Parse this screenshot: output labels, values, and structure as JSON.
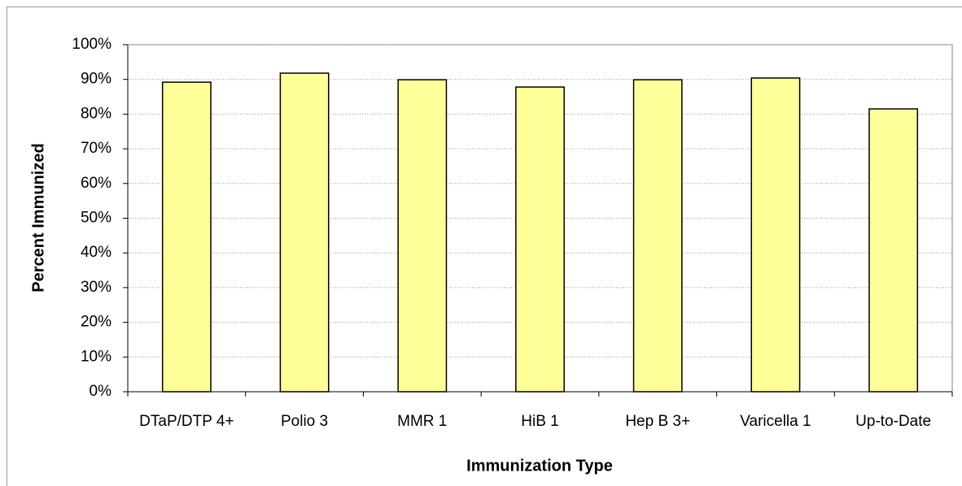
{
  "chart_data": {
    "type": "bar",
    "x_label": "Immunization Type",
    "y_label": "Percent Immunized",
    "categories": [
      "DTaP/DTP 4+",
      "Polio 3",
      "MMR 1",
      "HiB 1",
      "Hep B 3+",
      "Varicella 1",
      "Up-to-Date"
    ],
    "values": [
      89.2,
      91.8,
      89.9,
      87.8,
      89.9,
      90.4,
      81.5
    ],
    "color": "#ffff99",
    "ylim": [
      0,
      100
    ],
    "yticks": [
      {
        "value": 0,
        "label": "0%"
      },
      {
        "value": 10,
        "label": "10%"
      },
      {
        "value": 20,
        "label": "20%"
      },
      {
        "value": 30,
        "label": "30%"
      },
      {
        "value": 40,
        "label": "40%"
      },
      {
        "value": 50,
        "label": "50%"
      },
      {
        "value": 60,
        "label": "60%"
      },
      {
        "value": 70,
        "label": "70%"
      },
      {
        "value": 80,
        "label": "80%"
      },
      {
        "value": 90,
        "label": "90%"
      },
      {
        "value": 100,
        "label": "100%"
      }
    ],
    "grid": true
  }
}
